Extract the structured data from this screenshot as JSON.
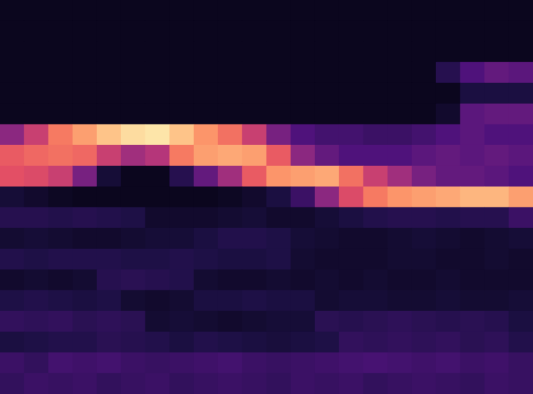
{
  "chart_data": {
    "type": "heatmap",
    "color": "magma",
    "tick_labels": false,
    "cells": [
      [
        5,
        5,
        5,
        5,
        5,
        5,
        5,
        5,
        5,
        5,
        5,
        5,
        5,
        5,
        5,
        5,
        5,
        5,
        5,
        5,
        5,
        5
      ],
      [
        5,
        5,
        5,
        5,
        5,
        5,
        5,
        5,
        5,
        5,
        5,
        5,
        5,
        5,
        5,
        5,
        5,
        5,
        5,
        5,
        5,
        5
      ],
      [
        5,
        5,
        5,
        5,
        5,
        5,
        5,
        5,
        5,
        5,
        5,
        5,
        5,
        5,
        5,
        5,
        5,
        5,
        5,
        5,
        5,
        5
      ],
      [
        5,
        5,
        5,
        5,
        5,
        5,
        5,
        5,
        5,
        5,
        5,
        5,
        5,
        5,
        5,
        5,
        5,
        5,
        15,
        25,
        30,
        28
      ],
      [
        5,
        5,
        5,
        5,
        5,
        5,
        5,
        5,
        5,
        5,
        5,
        5,
        5,
        5,
        5,
        5,
        5,
        5,
        5,
        12,
        12,
        12
      ],
      [
        5,
        5,
        5,
        5,
        5,
        5,
        5,
        5,
        5,
        5,
        5,
        5,
        5,
        5,
        5,
        5,
        5,
        5,
        8,
        28,
        30,
        30
      ],
      [
        40,
        55,
        72,
        80,
        88,
        93,
        95,
        88,
        78,
        70,
        55,
        35,
        25,
        22,
        22,
        20,
        20,
        22,
        25,
        28,
        25,
        25
      ],
      [
        65,
        68,
        70,
        68,
        55,
        45,
        50,
        72,
        80,
        82,
        80,
        65,
        40,
        30,
        25,
        25,
        25,
        28,
        30,
        28,
        30,
        28
      ],
      [
        62,
        60,
        55,
        35,
        10,
        5,
        5,
        15,
        30,
        45,
        65,
        78,
        80,
        82,
        70,
        55,
        45,
        35,
        30,
        30,
        28,
        25
      ],
      [
        10,
        8,
        6,
        5,
        5,
        5,
        5,
        5,
        5,
        6,
        8,
        12,
        20,
        40,
        60,
        72,
        78,
        80,
        82,
        85,
        85,
        80
      ],
      [
        15,
        15,
        14,
        15,
        14,
        13,
        8,
        8,
        8,
        9,
        10,
        8,
        8,
        10,
        12,
        14,
        15,
        15,
        14,
        15,
        15,
        20
      ],
      [
        9,
        10,
        9,
        8,
        8,
        9,
        10,
        10,
        12,
        14,
        14,
        13,
        10,
        9,
        8,
        8,
        9,
        10,
        9,
        8,
        9,
        10
      ],
      [
        14,
        13,
        14,
        14,
        14,
        13,
        13,
        14,
        13,
        12,
        12,
        13,
        9,
        8,
        8,
        8,
        9,
        9,
        8,
        8,
        9,
        8
      ],
      [
        8,
        9,
        8,
        9,
        15,
        16,
        15,
        14,
        9,
        8,
        8,
        9,
        8,
        9,
        8,
        9,
        8,
        8,
        9,
        8,
        8,
        8
      ],
      [
        13,
        14,
        13,
        12,
        13,
        9,
        8,
        9,
        12,
        12,
        13,
        12,
        12,
        9,
        10,
        10,
        9,
        9,
        10,
        9,
        9,
        10
      ],
      [
        18,
        17,
        18,
        16,
        17,
        16,
        9,
        10,
        9,
        8,
        9,
        10,
        10,
        16,
        15,
        16,
        17,
        16,
        15,
        16,
        15,
        12
      ],
      [
        12,
        13,
        14,
        14,
        16,
        15,
        14,
        12,
        14,
        13,
        12,
        11,
        12,
        13,
        18,
        17,
        18,
        17,
        18,
        16,
        17,
        14
      ],
      [
        20,
        18,
        22,
        21,
        22,
        20,
        19,
        20,
        21,
        22,
        20,
        19,
        20,
        21,
        22,
        23,
        22,
        21,
        22,
        20,
        21,
        19
      ],
      [
        18,
        20,
        19,
        20,
        18,
        19,
        20,
        18,
        19,
        20,
        19,
        18,
        20,
        19,
        20,
        18,
        19,
        20,
        19,
        18,
        20,
        19
      ]
    ]
  }
}
